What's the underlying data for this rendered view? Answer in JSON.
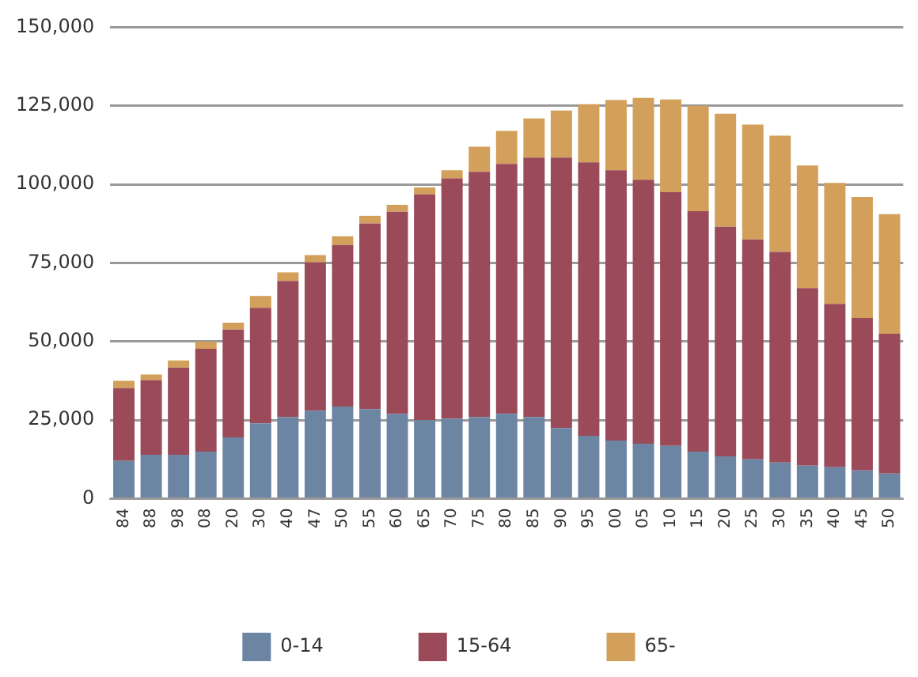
{
  "chart_data": {
    "type": "bar",
    "stacked": true,
    "categories": [
      "84",
      "88",
      "98",
      "08",
      "20",
      "30",
      "40",
      "47",
      "50",
      "55",
      "60",
      "65",
      "70",
      "75",
      "80",
      "85",
      "90",
      "95",
      "00",
      "05",
      "10",
      "15",
      "20",
      "25",
      "30",
      "35",
      "40",
      "45",
      "50"
    ],
    "series": [
      {
        "name": "0-14",
        "color": "#6b85a3",
        "values": [
          12000,
          14000,
          14000,
          15000,
          19500,
          24000,
          26000,
          28000,
          29300,
          28500,
          27000,
          25000,
          25500,
          26000,
          27000,
          26000,
          22500,
          20000,
          18500,
          17500,
          16800,
          15000,
          13500,
          12500,
          11500,
          10500,
          10000,
          9000,
          8000
        ]
      },
      {
        "name": "15-64",
        "color": "#9b4a5a",
        "values": [
          23200,
          23700,
          27700,
          32700,
          34300,
          36700,
          43300,
          47200,
          51400,
          59100,
          64300,
          71800,
          76400,
          78000,
          79500,
          82500,
          86000,
          87000,
          86000,
          84000,
          80700,
          76500,
          73000,
          70000,
          67000,
          56500,
          52000,
          48500,
          44500
        ]
      },
      {
        "name": "65-",
        "color": "#d2a05a",
        "values": [
          2300,
          1800,
          2300,
          2300,
          2200,
          3800,
          2700,
          2300,
          2800,
          2400,
          2200,
          2200,
          2600,
          8000,
          10500,
          12500,
          15000,
          18500,
          22300,
          26000,
          29500,
          33500,
          36000,
          36500,
          37000,
          39000,
          38500,
          38500,
          38000
        ]
      }
    ],
    "ylim": [
      0,
      150000
    ],
    "yticks": [
      0,
      {
        "value": 25000,
        "label": "25,000"
      },
      {
        "value": 50000,
        "label": "50,000"
      },
      {
        "value": 75000,
        "label": "75,000"
      },
      {
        "value": 100000,
        "label": "100,000"
      },
      {
        "value": 125000,
        "label": "125,000"
      },
      {
        "value": 150000,
        "label": "150,000"
      }
    ],
    "grid": "y",
    "legend": "bottom"
  }
}
